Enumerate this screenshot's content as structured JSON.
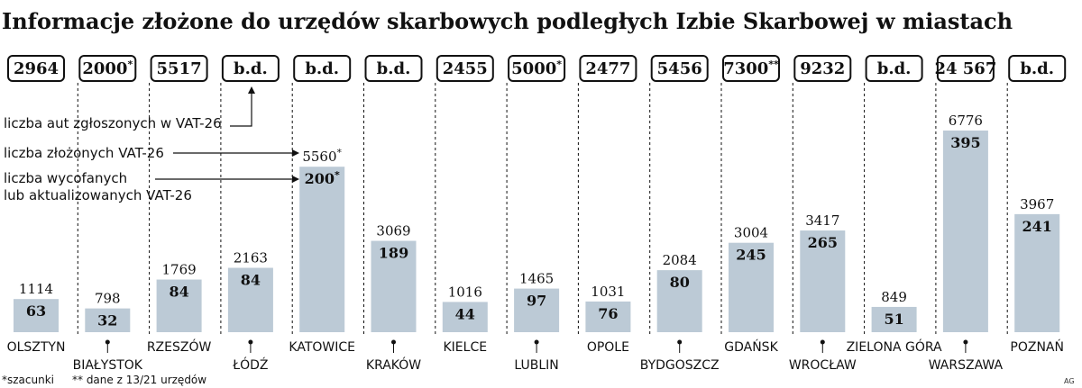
{
  "title": "Informacje złożone do urzędów skarbowych podległych Izbie Skarbowej  w miastach",
  "legend": {
    "cars": "liczba aut zgłoszonych w VAT-26",
    "filed": "liczba złożonych VAT-26",
    "withdrawn_line1": "liczba wycofanych",
    "withdrawn_line2": "lub aktualizowanych VAT-26"
  },
  "footnotes": {
    "estimate": "*szacunki",
    "partial": "** dane z 13/21 urzędów"
  },
  "credit": "AG",
  "colors": {
    "bar": "#bccad6",
    "box_border": "#111111",
    "text": "#111111"
  },
  "chart_data": {
    "type": "bar",
    "categories": [
      "OLSZTYN",
      "BIAŁYSTOK",
      "RZESZÓW",
      "ŁÓDŹ",
      "KATOWICE",
      "KRAKÓW",
      "KIELCE",
      "LUBLIN",
      "OPOLE",
      "BYDGOSZCZ",
      "GDAŃSK",
      "WROCŁAW",
      "ZIELONA GÓRA",
      "WARSZAWA",
      "POZNAŃ"
    ],
    "series": [
      {
        "name": "liczba aut zgłoszonych w VAT-26",
        "labels": [
          "2964",
          "2000",
          "5517",
          "b.d.",
          "b.d.",
          "b.d.",
          "2455",
          "5000",
          "2477",
          "5456",
          "7300",
          "9232",
          "b.d.",
          "24 567",
          "b.d."
        ],
        "marks": [
          "",
          "*",
          "",
          "",
          "",
          "",
          "",
          "*",
          "",
          "",
          "**",
          "",
          "",
          "",
          ""
        ]
      },
      {
        "name": "liczba złożonych VAT-26",
        "values": [
          1114,
          798,
          1769,
          2163,
          5560,
          3069,
          1016,
          1465,
          1031,
          2084,
          3004,
          3417,
          849,
          6776,
          3967
        ],
        "marks": [
          "",
          "",
          "",
          "",
          "*",
          "",
          "",
          "",
          "",
          "",
          "",
          "",
          "",
          "",
          ""
        ]
      },
      {
        "name": "liczba wycofanych lub aktualizowanych VAT-26",
        "values": [
          63,
          32,
          84,
          84,
          200,
          189,
          44,
          97,
          76,
          80,
          245,
          265,
          51,
          395,
          241
        ],
        "marks": [
          "",
          "",
          "",
          "",
          "*",
          "",
          "",
          "",
          "",
          "",
          "",
          "",
          "",
          "",
          ""
        ]
      }
    ],
    "ylim": [
      0,
      7000
    ]
  }
}
